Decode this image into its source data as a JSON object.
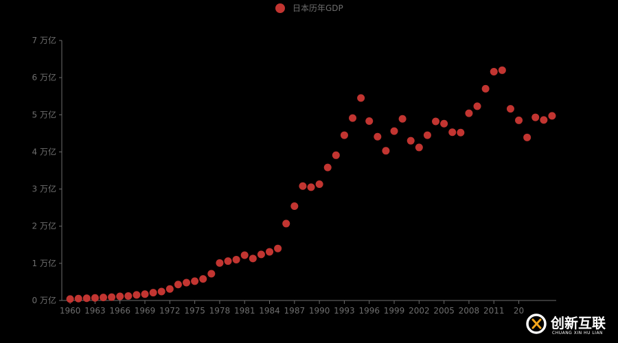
{
  "chart_data": {
    "type": "scatter",
    "title": "",
    "xlabel": "",
    "ylabel": "",
    "legend": {
      "entries": [
        "日本历年GDP"
      ],
      "placement": "top-center"
    },
    "colors": {
      "series": "#c23531",
      "axis": "#6e6e6e",
      "background": "#000000"
    },
    "y_unit": "万亿",
    "ylim": [
      0,
      7
    ],
    "y_ticks": [
      {
        "value": 0,
        "label": "0 万亿"
      },
      {
        "value": 1,
        "label": "1 万亿"
      },
      {
        "value": 2,
        "label": "2 万亿"
      },
      {
        "value": 3,
        "label": "3 万亿"
      },
      {
        "value": 4,
        "label": "4 万亿"
      },
      {
        "value": 5,
        "label": "5 万亿"
      },
      {
        "value": 6,
        "label": "6 万亿"
      },
      {
        "value": 7,
        "label": "7 万亿"
      }
    ],
    "x_tick_labels": [
      "1960",
      "1963",
      "1966",
      "1969",
      "1972",
      "1975",
      "1978",
      "1981",
      "1984",
      "1987",
      "1990",
      "1993",
      "1996",
      "1999",
      "2002",
      "2005",
      "2008",
      "2011",
      "20"
    ],
    "grid": false,
    "series": [
      {
        "name": "日本历年GDP",
        "x": [
          1960,
          1961,
          1962,
          1963,
          1964,
          1965,
          1966,
          1967,
          1968,
          1969,
          1970,
          1971,
          1972,
          1973,
          1974,
          1975,
          1976,
          1977,
          1978,
          1979,
          1980,
          1981,
          1982,
          1983,
          1984,
          1985,
          1986,
          1987,
          1988,
          1989,
          1990,
          1991,
          1992,
          1993,
          1994,
          1995,
          1996,
          1997,
          1998,
          1999,
          2000,
          2001,
          2002,
          2003,
          2004,
          2005,
          2006,
          2007,
          2008,
          2009,
          2010,
          2011,
          2012,
          2013,
          2014,
          2015,
          2016,
          2017,
          2018
        ],
        "values": [
          0.04,
          0.05,
          0.06,
          0.07,
          0.08,
          0.09,
          0.11,
          0.12,
          0.15,
          0.17,
          0.21,
          0.24,
          0.31,
          0.43,
          0.48,
          0.52,
          0.58,
          0.72,
          1.01,
          1.06,
          1.1,
          1.22,
          1.13,
          1.24,
          1.31,
          1.4,
          2.07,
          2.54,
          3.08,
          3.05,
          3.13,
          3.58,
          3.91,
          4.45,
          4.91,
          5.45,
          4.83,
          4.41,
          4.03,
          4.56,
          4.89,
          4.3,
          4.12,
          4.45,
          4.82,
          4.76,
          4.53,
          4.52,
          5.04,
          5.23,
          5.7,
          6.16,
          6.2,
          5.16,
          4.85,
          4.39,
          4.93,
          4.86,
          4.97
        ]
      }
    ]
  },
  "watermark": {
    "main_text": "创新互联",
    "sub_text": "CHUANG XIN HU LIAN"
  }
}
